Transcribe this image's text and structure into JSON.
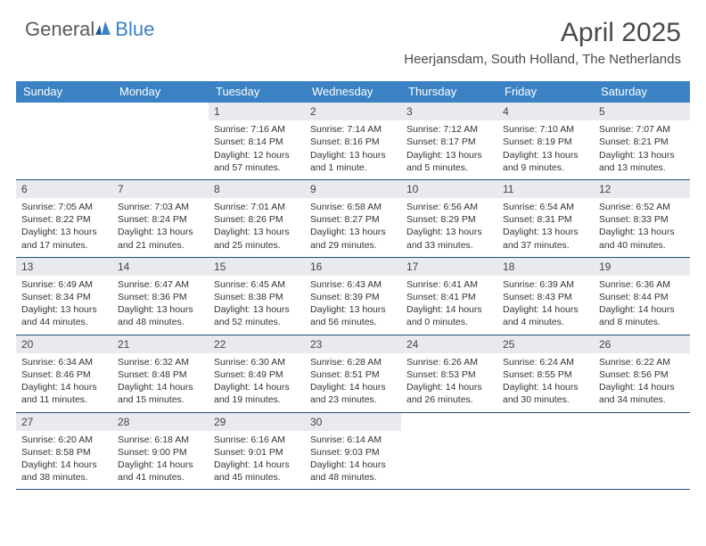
{
  "logo": {
    "text1": "General",
    "text2": "Blue"
  },
  "title": {
    "month": "April 2025",
    "location": "Heerjansdam, South Holland, The Netherlands"
  },
  "colors": {
    "header_bg": "#3b82c4",
    "header_text": "#ffffff",
    "daynum_bg": "#e8eaed",
    "border": "#1f4e79",
    "logo_blue": "#3b7fc4",
    "body_text": "#333333"
  },
  "weekdays": [
    "Sunday",
    "Monday",
    "Tuesday",
    "Wednesday",
    "Thursday",
    "Friday",
    "Saturday"
  ],
  "weeks": [
    [
      {
        "num": "",
        "sunrise": "",
        "sunset": "",
        "daylight": ""
      },
      {
        "num": "",
        "sunrise": "",
        "sunset": "",
        "daylight": ""
      },
      {
        "num": "1",
        "sunrise": "Sunrise: 7:16 AM",
        "sunset": "Sunset: 8:14 PM",
        "daylight": "Daylight: 12 hours and 57 minutes."
      },
      {
        "num": "2",
        "sunrise": "Sunrise: 7:14 AM",
        "sunset": "Sunset: 8:16 PM",
        "daylight": "Daylight: 13 hours and 1 minute."
      },
      {
        "num": "3",
        "sunrise": "Sunrise: 7:12 AM",
        "sunset": "Sunset: 8:17 PM",
        "daylight": "Daylight: 13 hours and 5 minutes."
      },
      {
        "num": "4",
        "sunrise": "Sunrise: 7:10 AM",
        "sunset": "Sunset: 8:19 PM",
        "daylight": "Daylight: 13 hours and 9 minutes."
      },
      {
        "num": "5",
        "sunrise": "Sunrise: 7:07 AM",
        "sunset": "Sunset: 8:21 PM",
        "daylight": "Daylight: 13 hours and 13 minutes."
      }
    ],
    [
      {
        "num": "6",
        "sunrise": "Sunrise: 7:05 AM",
        "sunset": "Sunset: 8:22 PM",
        "daylight": "Daylight: 13 hours and 17 minutes."
      },
      {
        "num": "7",
        "sunrise": "Sunrise: 7:03 AM",
        "sunset": "Sunset: 8:24 PM",
        "daylight": "Daylight: 13 hours and 21 minutes."
      },
      {
        "num": "8",
        "sunrise": "Sunrise: 7:01 AM",
        "sunset": "Sunset: 8:26 PM",
        "daylight": "Daylight: 13 hours and 25 minutes."
      },
      {
        "num": "9",
        "sunrise": "Sunrise: 6:58 AM",
        "sunset": "Sunset: 8:27 PM",
        "daylight": "Daylight: 13 hours and 29 minutes."
      },
      {
        "num": "10",
        "sunrise": "Sunrise: 6:56 AM",
        "sunset": "Sunset: 8:29 PM",
        "daylight": "Daylight: 13 hours and 33 minutes."
      },
      {
        "num": "11",
        "sunrise": "Sunrise: 6:54 AM",
        "sunset": "Sunset: 8:31 PM",
        "daylight": "Daylight: 13 hours and 37 minutes."
      },
      {
        "num": "12",
        "sunrise": "Sunrise: 6:52 AM",
        "sunset": "Sunset: 8:33 PM",
        "daylight": "Daylight: 13 hours and 40 minutes."
      }
    ],
    [
      {
        "num": "13",
        "sunrise": "Sunrise: 6:49 AM",
        "sunset": "Sunset: 8:34 PM",
        "daylight": "Daylight: 13 hours and 44 minutes."
      },
      {
        "num": "14",
        "sunrise": "Sunrise: 6:47 AM",
        "sunset": "Sunset: 8:36 PM",
        "daylight": "Daylight: 13 hours and 48 minutes."
      },
      {
        "num": "15",
        "sunrise": "Sunrise: 6:45 AM",
        "sunset": "Sunset: 8:38 PM",
        "daylight": "Daylight: 13 hours and 52 minutes."
      },
      {
        "num": "16",
        "sunrise": "Sunrise: 6:43 AM",
        "sunset": "Sunset: 8:39 PM",
        "daylight": "Daylight: 13 hours and 56 minutes."
      },
      {
        "num": "17",
        "sunrise": "Sunrise: 6:41 AM",
        "sunset": "Sunset: 8:41 PM",
        "daylight": "Daylight: 14 hours and 0 minutes."
      },
      {
        "num": "18",
        "sunrise": "Sunrise: 6:39 AM",
        "sunset": "Sunset: 8:43 PM",
        "daylight": "Daylight: 14 hours and 4 minutes."
      },
      {
        "num": "19",
        "sunrise": "Sunrise: 6:36 AM",
        "sunset": "Sunset: 8:44 PM",
        "daylight": "Daylight: 14 hours and 8 minutes."
      }
    ],
    [
      {
        "num": "20",
        "sunrise": "Sunrise: 6:34 AM",
        "sunset": "Sunset: 8:46 PM",
        "daylight": "Daylight: 14 hours and 11 minutes."
      },
      {
        "num": "21",
        "sunrise": "Sunrise: 6:32 AM",
        "sunset": "Sunset: 8:48 PM",
        "daylight": "Daylight: 14 hours and 15 minutes."
      },
      {
        "num": "22",
        "sunrise": "Sunrise: 6:30 AM",
        "sunset": "Sunset: 8:49 PM",
        "daylight": "Daylight: 14 hours and 19 minutes."
      },
      {
        "num": "23",
        "sunrise": "Sunrise: 6:28 AM",
        "sunset": "Sunset: 8:51 PM",
        "daylight": "Daylight: 14 hours and 23 minutes."
      },
      {
        "num": "24",
        "sunrise": "Sunrise: 6:26 AM",
        "sunset": "Sunset: 8:53 PM",
        "daylight": "Daylight: 14 hours and 26 minutes."
      },
      {
        "num": "25",
        "sunrise": "Sunrise: 6:24 AM",
        "sunset": "Sunset: 8:55 PM",
        "daylight": "Daylight: 14 hours and 30 minutes."
      },
      {
        "num": "26",
        "sunrise": "Sunrise: 6:22 AM",
        "sunset": "Sunset: 8:56 PM",
        "daylight": "Daylight: 14 hours and 34 minutes."
      }
    ],
    [
      {
        "num": "27",
        "sunrise": "Sunrise: 6:20 AM",
        "sunset": "Sunset: 8:58 PM",
        "daylight": "Daylight: 14 hours and 38 minutes."
      },
      {
        "num": "28",
        "sunrise": "Sunrise: 6:18 AM",
        "sunset": "Sunset: 9:00 PM",
        "daylight": "Daylight: 14 hours and 41 minutes."
      },
      {
        "num": "29",
        "sunrise": "Sunrise: 6:16 AM",
        "sunset": "Sunset: 9:01 PM",
        "daylight": "Daylight: 14 hours and 45 minutes."
      },
      {
        "num": "30",
        "sunrise": "Sunrise: 6:14 AM",
        "sunset": "Sunset: 9:03 PM",
        "daylight": "Daylight: 14 hours and 48 minutes."
      },
      {
        "num": "",
        "sunrise": "",
        "sunset": "",
        "daylight": ""
      },
      {
        "num": "",
        "sunrise": "",
        "sunset": "",
        "daylight": ""
      },
      {
        "num": "",
        "sunrise": "",
        "sunset": "",
        "daylight": ""
      }
    ]
  ]
}
